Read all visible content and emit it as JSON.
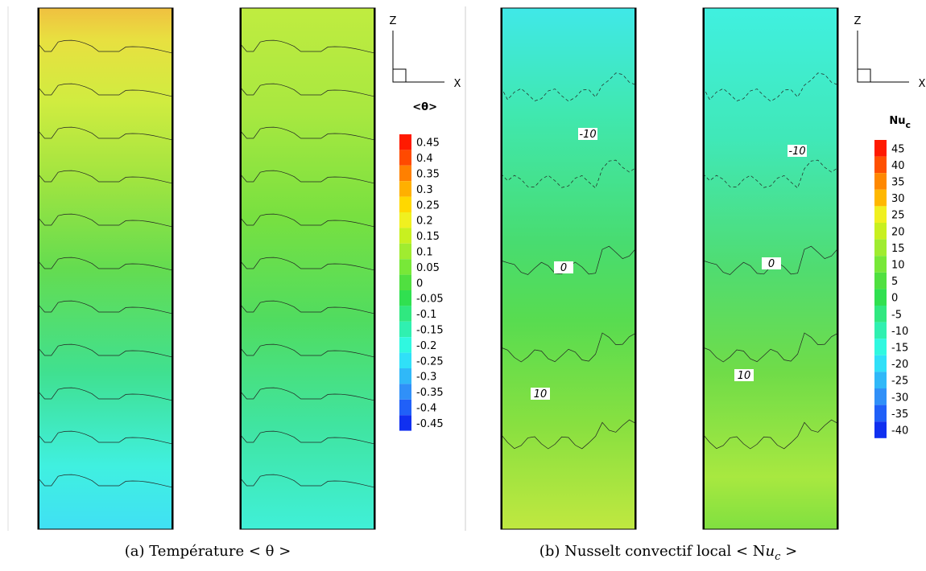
{
  "panels": [
    {
      "contour_labels": []
    },
    {
      "contour_labels": []
    },
    {
      "contour_labels": [
        "-10",
        "0",
        "10"
      ]
    },
    {
      "contour_labels": [
        "-10",
        "0",
        "10"
      ]
    }
  ],
  "axes_glyph": {
    "z": "Z",
    "x": "X"
  },
  "colorbar_a": {
    "title": "<θ>",
    "levels": [
      0.45,
      0.4,
      0.35,
      0.3,
      0.25,
      0.2,
      0.15,
      0.1,
      0.05,
      0,
      -0.05,
      -0.1,
      -0.15,
      -0.2,
      -0.25,
      -0.3,
      -0.35,
      -0.4,
      -0.45
    ],
    "colors": [
      "#ff1a00",
      "#ff4a00",
      "#ff8000",
      "#ffb000",
      "#ffd800",
      "#f0f020",
      "#c8f020",
      "#a0ec30",
      "#78e838",
      "#50e040",
      "#30e050",
      "#30e880",
      "#30f0b0",
      "#30f8e0",
      "#30e0f8",
      "#30b8f8",
      "#3090f8",
      "#2060f8",
      "#1030f0"
    ]
  },
  "colorbar_b": {
    "title": "Nu",
    "title_sub": "c",
    "levels": [
      45,
      40,
      35,
      30,
      25,
      20,
      15,
      10,
      5,
      0,
      -5,
      -10,
      -15,
      -20,
      -25,
      -30,
      -35,
      -40
    ],
    "colors": [
      "#ff1a00",
      "#ff5000",
      "#ff8800",
      "#ffb800",
      "#f0f020",
      "#c8f020",
      "#a0ec30",
      "#78e838",
      "#50e040",
      "#30e050",
      "#30e880",
      "#30f0b0",
      "#30f8e0",
      "#30e0f8",
      "#30b8f8",
      "#3090f8",
      "#2060f8",
      "#1030f0"
    ]
  },
  "captions": {
    "a": "(a) Température < θ >",
    "b": {
      "text": "(b) Nusselt convectif local < N",
      "italic": "u",
      "sub": "c",
      "end": " >"
    }
  }
}
